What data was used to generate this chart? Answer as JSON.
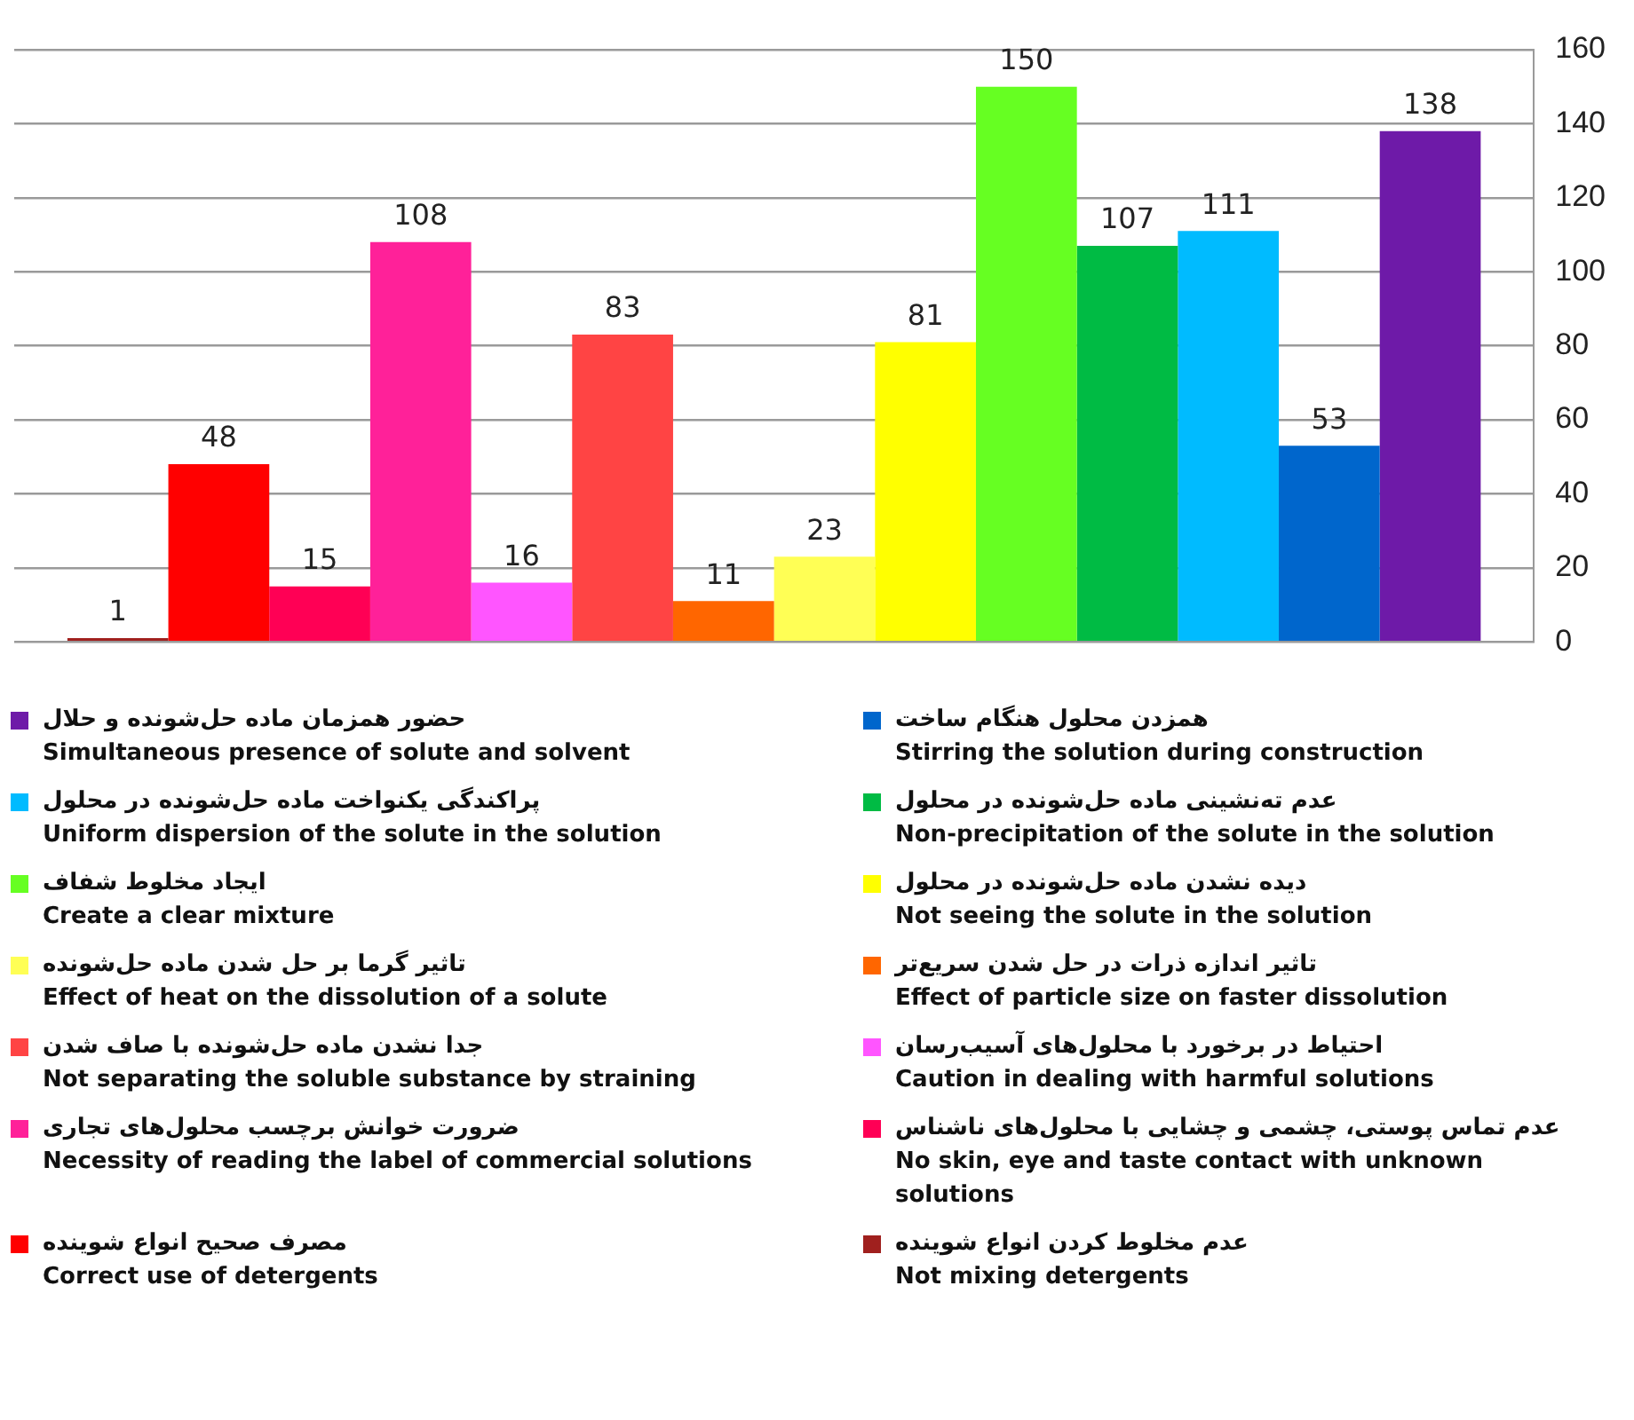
{
  "chart_data": {
    "type": "bar",
    "categories": [
      null
    ],
    "series": [
      {
        "name": "عدم مخلوط کردن انواع شوینده\nNot mixing detergents",
        "color": "#a0201e",
        "values": [
          1
        ]
      },
      {
        "name": "مصرف صحیح انواع شوینده\nCorrect use of detergents",
        "color": "#ff0000",
        "values": [
          48
        ]
      },
      {
        "name": "عدم تماس پوستی، چشمی و چشایی با محلول‌های ناشناس\nNo skin, eye and taste contact with unknown solutions",
        "color": "#ff0055",
        "values": [
          15
        ]
      },
      {
        "name": "ضرورت خوانش برچسب محلول‌های تجاری\nNecessity of reading the label of commercial solutions",
        "color": "#ff2199",
        "values": [
          108
        ]
      },
      {
        "name": "احتیاط در برخورد با محلول‌های آسیب‌رسان\nCaution in dealing with harmful solutions",
        "color": "#ff55ff",
        "values": [
          16
        ]
      },
      {
        "name": "جدا نشدن ماده حل‌شونده با صاف شدن\nNot separating the soluble substance by straining",
        "color": "#ff4444",
        "values": [
          83
        ]
      },
      {
        "name": "تاثیر اندازه ذرات در حل شدن سریع‌تر\nEffect of particle size on faster dissolution",
        "color": "#ff6600",
        "values": [
          11
        ]
      },
      {
        "name": "تاثیر گرما بر حل شدن ماده حل‌شونده\nEffect of heat on the dissolution of a solute",
        "color": "#ffff55",
        "values": [
          23
        ]
      },
      {
        "name": "دیده نشدن ماده حل‌شونده در محلول\nNot seeing the solute in the solution",
        "color": "#ffff00",
        "values": [
          81
        ]
      },
      {
        "name": "ایجاد مخلوط شفاف\nCreate a clear mixture",
        "color": "#66ff22",
        "values": [
          150
        ]
      },
      {
        "name": "عدم ته‌نشینی ماده حل‌شونده در محلول\nNon-precipitation of the solute in the solution",
        "color": "#00bb44",
        "values": [
          107
        ]
      },
      {
        "name": "پراکندگی یکنواخت ماده حل‌شونده در محلول\nUniform dispersion of the solute in the solution",
        "color": "#00bbff",
        "values": [
          111
        ]
      },
      {
        "name": "همزدن محلول هنگام ساخت\nStirring the solution during construction",
        "color": "#0066cc",
        "values": [
          53
        ]
      },
      {
        "name": "حضور همزمان ماده حل‌شونده و حلال\nSimultaneous presence of solute and solvent",
        "color": "#6e1aa8",
        "values": [
          138
        ]
      }
    ],
    "ylim": [
      0,
      160
    ],
    "yticks": [
      0,
      20,
      40,
      60,
      80,
      100,
      120,
      140,
      160
    ],
    "grid": "y",
    "data_labels": true,
    "legend": "bottom"
  }
}
